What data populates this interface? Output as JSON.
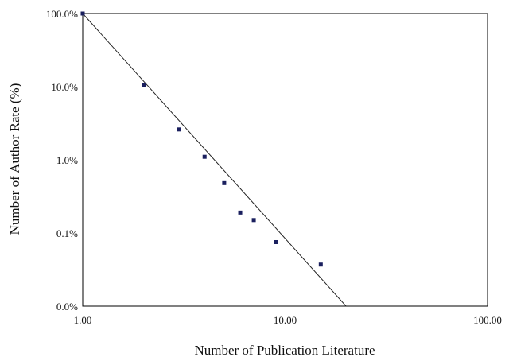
{
  "chart_data": {
    "type": "scatter",
    "title": "",
    "xlabel": "Number of Publication Literature",
    "ylabel": "Number of Author Rate (%)",
    "x_scale": "log",
    "y_scale": "log",
    "xlim": [
      1,
      100
    ],
    "ylim": [
      0.01,
      100
    ],
    "x_ticks": [
      {
        "value": 1,
        "label": "1.00"
      },
      {
        "value": 10,
        "label": "10.00"
      },
      {
        "value": 100,
        "label": "100.00"
      }
    ],
    "y_ticks": [
      {
        "value": 100,
        "label": "100.0%"
      },
      {
        "value": 10,
        "label": "10.0%"
      },
      {
        "value": 1,
        "label": "1.0%"
      },
      {
        "value": 0.1,
        "label": "0.1%"
      },
      {
        "value": 0.01,
        "label": "0.0%"
      }
    ],
    "grid": false,
    "legend": "none",
    "series": [
      {
        "type": "scatter",
        "color": "#1a1f5e",
        "points": [
          {
            "x": 1,
            "y": 100
          },
          {
            "x": 2,
            "y": 10.5
          },
          {
            "x": 3,
            "y": 2.6
          },
          {
            "x": 4,
            "y": 1.1
          },
          {
            "x": 5,
            "y": 0.48
          },
          {
            "x": 6,
            "y": 0.19
          },
          {
            "x": 7,
            "y": 0.15
          },
          {
            "x": 9,
            "y": 0.075
          },
          {
            "x": 15,
            "y": 0.037
          }
        ]
      },
      {
        "type": "line",
        "color": "#222222",
        "points": [
          {
            "x": 1,
            "y": 100
          },
          {
            "x": 20,
            "y": 0.01
          }
        ]
      }
    ]
  }
}
